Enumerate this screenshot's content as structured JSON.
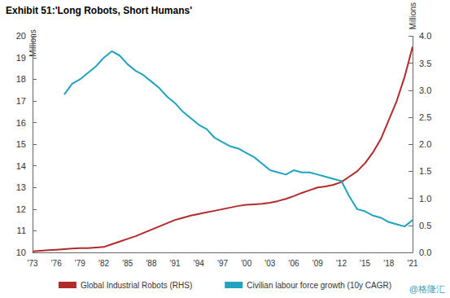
{
  "chart_data": {
    "type": "line",
    "title": "Exhibit 51:'Long Robots, Short Humans'",
    "y_label": "Millions",
    "y2_label": "Millions",
    "categories": [
      "'73",
      null,
      null,
      "'76",
      null,
      null,
      "'79",
      null,
      null,
      "'82",
      null,
      null,
      "'85",
      null,
      null,
      "'88",
      null,
      null,
      "'91",
      null,
      null,
      "'94",
      null,
      null,
      "'97",
      null,
      null,
      "'00",
      null,
      null,
      "'03",
      null,
      null,
      "'06",
      null,
      null,
      "'09",
      null,
      null,
      "'12",
      null,
      null,
      "'15",
      null,
      null,
      "'18",
      null,
      null,
      "'21"
    ],
    "series": [
      {
        "name": "Global Industrial Robots (RHS)",
        "color": "#b22a2a",
        "axis": "y2",
        "values": [
          0.02,
          0.03,
          0.04,
          0.05,
          0.06,
          0.07,
          0.08,
          0.08,
          0.09,
          0.1,
          0.15,
          0.2,
          0.25,
          0.3,
          0.36,
          0.42,
          0.48,
          0.54,
          0.6,
          0.64,
          0.68,
          0.71,
          0.74,
          0.77,
          0.8,
          0.83,
          0.86,
          0.88,
          0.89,
          0.9,
          0.92,
          0.95,
          0.99,
          1.04,
          1.1,
          1.15,
          1.2,
          1.22,
          1.25,
          1.3,
          1.4,
          1.5,
          1.65,
          1.85,
          2.1,
          2.45,
          2.8,
          3.25,
          3.8
        ]
      },
      {
        "name": "Civilian labour force growth (10y CAGR)",
        "color": "#1fa3bf",
        "values": [
          null,
          null,
          null,
          null,
          17.3,
          17.8,
          18.0,
          18.3,
          18.6,
          19.0,
          19.3,
          19.1,
          18.7,
          18.4,
          18.2,
          17.9,
          17.6,
          17.2,
          16.9,
          16.5,
          16.2,
          15.9,
          15.7,
          15.3,
          15.1,
          14.9,
          14.8,
          14.6,
          14.4,
          14.1,
          13.8,
          13.7,
          13.6,
          13.8,
          13.7,
          13.7,
          13.6,
          13.5,
          13.4,
          13.3,
          12.6,
          12.0,
          11.9,
          11.7,
          11.6,
          11.4,
          11.3,
          11.2,
          11.5
        ]
      }
    ],
    "ylim": [
      10,
      20
    ],
    "yticks": [
      10,
      11,
      12,
      13,
      14,
      15,
      16,
      17,
      18,
      19,
      20
    ],
    "y2lim": [
      0,
      4
    ],
    "y2ticks": [
      {
        "value": 0,
        "label": "0.0"
      },
      {
        "value": 0.5,
        "label": "0.5"
      },
      {
        "value": 1,
        "label": "1.0"
      },
      {
        "value": 1.5,
        "label": "1.5"
      },
      {
        "value": 2,
        "label": "2.0"
      },
      {
        "value": 2.5,
        "label": "2.5"
      },
      {
        "value": 3,
        "label": "3.0"
      },
      {
        "value": 3.5,
        "label": "3.5"
      },
      {
        "value": 4,
        "label": "4.0"
      }
    ],
    "grid": false,
    "legend": "bottom",
    "annotations": [
      "@格隆汇"
    ]
  }
}
